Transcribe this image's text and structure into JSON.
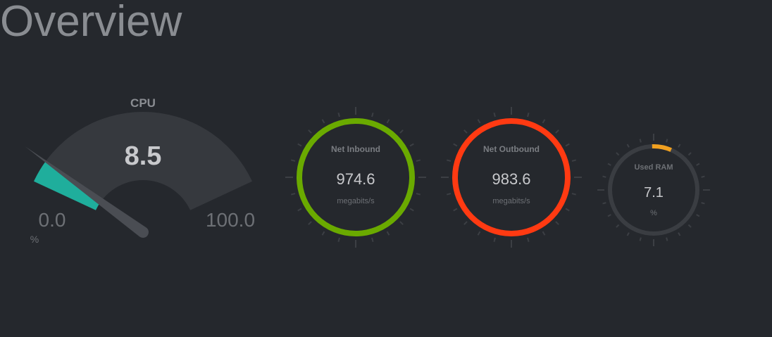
{
  "page": {
    "title": "Overview"
  },
  "cpu": {
    "label": "CPU",
    "value": "8.5",
    "value_num": 8.5,
    "min": "0.0",
    "max": "100.0",
    "unit": "%",
    "fill_color": "#1fae9c"
  },
  "net_inbound": {
    "label": "Net Inbound",
    "value": "974.6",
    "unit": "megabits/s",
    "color": "#6aaa00"
  },
  "net_outbound": {
    "label": "Net Outbound",
    "value": "983.6",
    "unit": "megabits/s",
    "color": "#ff3a12"
  },
  "used_ram": {
    "label": "Used RAM",
    "value": "7.1",
    "value_num": 7.1,
    "unit": "%",
    "color": "#f0a020"
  }
}
